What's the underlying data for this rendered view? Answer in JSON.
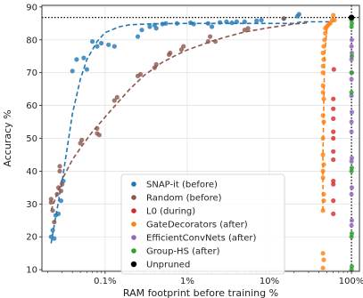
{
  "chart_data": {
    "type": "scatter",
    "title": "",
    "xlabel": "RAM footprint before training %",
    "ylabel": "Accuracy %",
    "xscale": "log",
    "xlim": [
      0.017,
      125
    ],
    "ylim": [
      9.5,
      90.5
    ],
    "x_ticks": [
      {
        "value": 0.1,
        "label": "0.1%"
      },
      {
        "value": 1,
        "label": "1%"
      },
      {
        "value": 10,
        "label": "10%"
      },
      {
        "value": 100,
        "label": "100%"
      }
    ],
    "y_ticks": [
      10,
      20,
      30,
      40,
      50,
      60,
      70,
      80,
      90
    ],
    "grid": true,
    "legend_position": "bottom-center",
    "reference_lines": {
      "unpruned_accuracy": 86.8,
      "full_ram_percent": 100
    },
    "series": [
      {
        "name": "SNAP-it (before)",
        "color": "#1f77b4",
        "points": [
          [
            0.022,
            20
          ],
          [
            0.023,
            22
          ],
          [
            0.024,
            19.5
          ],
          [
            0.025,
            26.5
          ],
          [
            0.027,
            27
          ],
          [
            0.029,
            31
          ],
          [
            0.031,
            37
          ],
          [
            0.04,
            70.5
          ],
          [
            0.045,
            74
          ],
          [
            0.055,
            74.5
          ],
          [
            0.06,
            71
          ],
          [
            0.07,
            79.5
          ],
          [
            0.08,
            78
          ],
          [
            0.09,
            79
          ],
          [
            0.11,
            78.5
          ],
          [
            0.13,
            78
          ],
          [
            0.25,
            81
          ],
          [
            0.28,
            83
          ],
          [
            0.35,
            84
          ],
          [
            0.4,
            84.5
          ],
          [
            0.42,
            83.5
          ],
          [
            0.5,
            84.8
          ],
          [
            0.55,
            85
          ],
          [
            0.75,
            85
          ],
          [
            1.1,
            85.2
          ],
          [
            1.2,
            84.8
          ],
          [
            1.8,
            85
          ],
          [
            2,
            84
          ],
          [
            2.5,
            85.3
          ],
          [
            3,
            85.5
          ],
          [
            3.5,
            85.2
          ],
          [
            4,
            85.5
          ],
          [
            5,
            85.5
          ],
          [
            7,
            85.8
          ],
          [
            8,
            86
          ],
          [
            15,
            86.5
          ],
          [
            22,
            87.2
          ],
          [
            23,
            87.8
          ]
        ],
        "trend": [
          [
            0.022,
            18
          ],
          [
            0.025,
            26
          ],
          [
            0.03,
            37
          ],
          [
            0.035,
            48
          ],
          [
            0.04,
            57.5
          ],
          [
            0.05,
            68
          ],
          [
            0.06,
            74
          ],
          [
            0.08,
            79.5
          ],
          [
            0.1,
            82.2
          ],
          [
            0.15,
            84
          ],
          [
            0.2,
            84.6
          ],
          [
            0.4,
            84.9
          ],
          [
            1,
            85
          ],
          [
            5,
            85
          ],
          [
            20,
            85
          ],
          [
            25,
            85.5
          ],
          [
            40,
            85.5
          ],
          [
            60,
            85.5
          ]
        ]
      },
      {
        "name": "Random (before)",
        "color": "#8c564b",
        "points": [
          [
            0.022,
            30.5
          ],
          [
            0.022,
            31.5
          ],
          [
            0.023,
            28
          ],
          [
            0.024,
            24.5
          ],
          [
            0.026,
            33
          ],
          [
            0.027,
            35
          ],
          [
            0.028,
            41.5
          ],
          [
            0.028,
            40
          ],
          [
            0.029,
            34
          ],
          [
            0.03,
            36
          ],
          [
            0.05,
            48.5
          ],
          [
            0.052,
            49.5
          ],
          [
            0.08,
            51.5
          ],
          [
            0.08,
            53
          ],
          [
            0.085,
            51
          ],
          [
            0.13,
            61.5
          ],
          [
            0.14,
            62.5
          ],
          [
            0.25,
            69
          ],
          [
            0.27,
            69.5
          ],
          [
            0.4,
            71.5
          ],
          [
            0.42,
            72.5
          ],
          [
            0.6,
            75.5
          ],
          [
            0.62,
            76
          ],
          [
            0.85,
            77
          ],
          [
            0.9,
            78
          ],
          [
            1.8,
            79.5
          ],
          [
            1.9,
            81
          ],
          [
            2.2,
            79.5
          ],
          [
            5,
            83
          ],
          [
            5.5,
            83.5
          ],
          [
            15,
            86.5
          ]
        ],
        "trend": [
          [
            0.022,
            28
          ],
          [
            0.03,
            37.5
          ],
          [
            0.04,
            43.5
          ],
          [
            0.05,
            47
          ],
          [
            0.07,
            52
          ],
          [
            0.1,
            56.5
          ],
          [
            0.15,
            61.5
          ],
          [
            0.2,
            65
          ],
          [
            0.3,
            69.2
          ],
          [
            0.5,
            73.2
          ],
          [
            0.8,
            75.8
          ],
          [
            1,
            76.9
          ],
          [
            2,
            79.6
          ],
          [
            3,
            80.9
          ],
          [
            5,
            82.4
          ],
          [
            10,
            83.7
          ],
          [
            20,
            84.8
          ],
          [
            30,
            85.2
          ]
        ]
      },
      {
        "name": "L0 (during)",
        "color": "#d62728",
        "points": [
          [
            60,
            27
          ],
          [
            60,
            31
          ],
          [
            60,
            36
          ],
          [
            60,
            37
          ],
          [
            60,
            43.5
          ],
          [
            60,
            46
          ],
          [
            60,
            50
          ],
          [
            60,
            52
          ],
          [
            60,
            56
          ],
          [
            60,
            59
          ],
          [
            60,
            62
          ],
          [
            61,
            71
          ]
        ]
      },
      {
        "name": "GateDecorators (after)",
        "color": "#ff7f0e",
        "points": [
          [
            45,
            10.5
          ],
          [
            46,
            13
          ],
          [
            45,
            15
          ],
          [
            45,
            28
          ],
          [
            46,
            31
          ],
          [
            46,
            33
          ],
          [
            45,
            38
          ],
          [
            45,
            40
          ],
          [
            46,
            42
          ],
          [
            45,
            45
          ],
          [
            45,
            50
          ],
          [
            46,
            55
          ],
          [
            45,
            57
          ],
          [
            46,
            62
          ],
          [
            45,
            64
          ],
          [
            45,
            66
          ],
          [
            45,
            70
          ],
          [
            45,
            72
          ],
          [
            46,
            74
          ],
          [
            45,
            76
          ],
          [
            46,
            78
          ],
          [
            47,
            80
          ],
          [
            48,
            82
          ],
          [
            48,
            83.5
          ],
          [
            50,
            84
          ],
          [
            52,
            84.5
          ],
          [
            55,
            85
          ],
          [
            58,
            86
          ],
          [
            60,
            87.5
          ],
          [
            62,
            86
          ]
        ],
        "trend": [
          [
            45,
            28
          ],
          [
            45,
            45
          ],
          [
            46,
            60
          ],
          [
            47,
            75
          ],
          [
            50,
            83
          ],
          [
            52,
            84.5
          ],
          [
            58,
            85.5
          ],
          [
            62,
            86
          ]
        ]
      },
      {
        "name": "EfficientConvNets (after)",
        "color": "#9467bd",
        "points": [
          [
            100,
            23.5
          ],
          [
            101,
            25
          ],
          [
            100,
            33
          ],
          [
            101,
            35
          ],
          [
            100,
            43
          ],
          [
            101,
            44
          ],
          [
            100,
            52
          ],
          [
            100,
            55
          ],
          [
            101,
            58
          ],
          [
            100,
            63
          ],
          [
            100,
            68
          ],
          [
            101,
            70
          ],
          [
            100,
            74
          ],
          [
            101,
            76
          ],
          [
            100,
            78
          ],
          [
            101,
            80
          ]
        ]
      },
      {
        "name": "Group-HS (after)",
        "color": "#2ca02c",
        "points": [
          [
            100,
            10
          ],
          [
            101,
            11
          ],
          [
            100,
            20
          ],
          [
            101,
            21
          ],
          [
            100,
            40
          ],
          [
            101,
            41
          ],
          [
            100,
            64
          ],
          [
            100,
            70
          ],
          [
            101,
            75
          ],
          [
            100,
            84
          ],
          [
            101,
            85
          ],
          [
            100,
            86
          ]
        ]
      },
      {
        "name": "Unpruned",
        "color": "#000000",
        "points": [
          [
            100,
            86.8
          ]
        ]
      }
    ]
  }
}
